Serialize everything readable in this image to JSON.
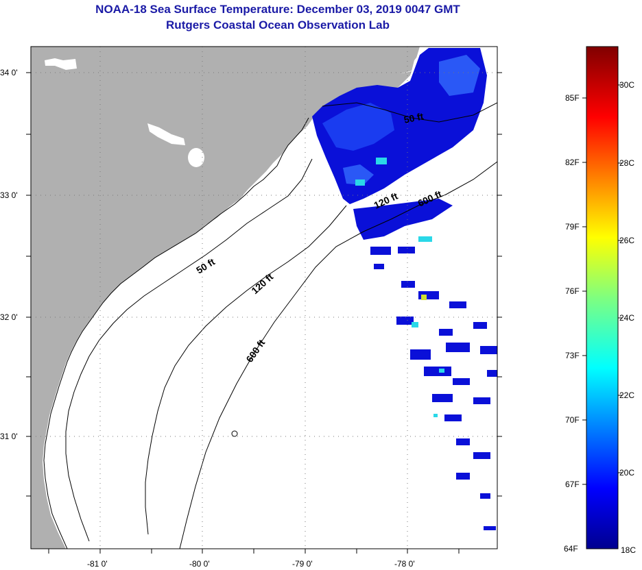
{
  "header": {
    "title": "NOAA-18 Sea Surface Temperature:  December 03, 2019 0047 GMT",
    "subtitle": "Rutgers Coastal Ocean Observation Lab"
  },
  "axes": {
    "lat_labels": [
      "34 0'",
      "33 0'",
      "32 0'",
      "31 0'"
    ],
    "lon_labels": [
      "-81 0'",
      "-80 0'",
      "-79 0'",
      "-78 0'"
    ]
  },
  "isobaths": {
    "labels": [
      "50 ft",
      "120 ft",
      "600 ft",
      "50 ft",
      "120 ft",
      "600 ft"
    ]
  },
  "colorbar": {
    "f_labels": [
      "85F",
      "82F",
      "79F",
      "76F",
      "73F",
      "70F",
      "67F",
      "64F"
    ],
    "c_labels": [
      "30C",
      "28C",
      "26C",
      "24C",
      "22C",
      "20C",
      "18C"
    ]
  },
  "colors": {
    "land": "#b0b0b0",
    "title": "#1a1aa6",
    "sst_cold": "#0a10d8",
    "sst_mid": "#1a3cf0",
    "sst_cyan": "#2ad8e8"
  }
}
